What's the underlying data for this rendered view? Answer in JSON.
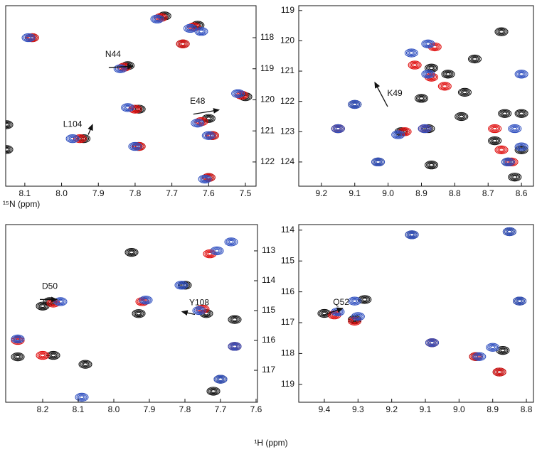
{
  "x_label": "¹H (ppm)",
  "y_label": "¹⁵N (ppm)",
  "chart_data": [
    {
      "type": "scatter",
      "xlim": [
        8.152,
        7.471
      ],
      "ylim": [
        116.97,
        122.78
      ],
      "xticks": [
        8.1,
        {
          "value": 8,
          "label": "8.0"
        },
        7.9,
        7.8,
        7.7,
        7.6,
        7.5
      ],
      "yticks": [
        118,
        119,
        120,
        121,
        122
      ],
      "ytick_side": "right",
      "series": [
        {
          "color": "#111111",
          "x": [
            8.08,
            7.72,
            7.63,
            7.67,
            7.82,
            7.79,
            7.5,
            7.6,
            7.59,
            7.94,
            7.79,
            7.6,
            8.15,
            8.15
          ],
          "y": [
            118.0,
            117.3,
            117.6,
            118.2,
            118.9,
            120.3,
            119.9,
            120.6,
            121.15,
            121.25,
            121.5,
            122.5,
            121.6,
            120.8
          ]
        },
        {
          "color": "#e01010",
          "x": [
            8.08,
            7.73,
            7.64,
            7.67,
            7.83,
            7.8,
            7.51,
            7.62,
            7.59,
            7.95,
            7.79,
            7.6
          ],
          "y": [
            118.0,
            117.35,
            117.65,
            118.2,
            118.95,
            120.3,
            119.85,
            120.7,
            121.15,
            121.25,
            121.5,
            122.5
          ]
        },
        {
          "color": "#3050c0",
          "x": [
            8.09,
            7.74,
            7.65,
            7.62,
            7.84,
            7.82,
            7.52,
            7.63,
            7.6,
            7.97,
            7.8,
            7.61
          ],
          "y": [
            118.0,
            117.4,
            117.7,
            117.8,
            119.0,
            120.25,
            119.8,
            120.75,
            121.15,
            121.25,
            121.5,
            122.55
          ]
        }
      ],
      "annotations": [
        {
          "text": "N44",
          "x": 7.86,
          "y": 118.55
        },
        {
          "text": "E48",
          "x": 7.63,
          "y": 120.05
        },
        {
          "text": "L104",
          "x": 7.97,
          "y": 120.8
        }
      ]
    },
    {
      "type": "scatter",
      "xlim": [
        9.268,
        8.564
      ],
      "ylim": [
        118.84,
        124.8
      ],
      "xticks": [
        9.2,
        9.1,
        {
          "value": 9,
          "label": "9.0"
        },
        8.9,
        8.8,
        8.7,
        8.6
      ],
      "yticks": [
        119,
        120,
        121,
        122,
        123,
        124
      ],
      "ytick_side": "left",
      "series": [
        {
          "color": "#111111",
          "x": [
            8.66,
            8.74,
            8.82,
            8.77,
            8.9,
            8.87,
            9.1,
            9.15,
            8.96,
            8.88,
            8.78,
            8.65,
            8.68,
            8.6,
            8.6,
            8.64,
            8.87,
            9.03,
            8.62
          ],
          "y": [
            119.7,
            120.6,
            121.1,
            121.7,
            121.9,
            120.9,
            122.1,
            122.9,
            123.0,
            122.9,
            122.5,
            122.4,
            123.3,
            122.4,
            123.6,
            124.0,
            124.1,
            124.0,
            124.5
          ]
        },
        {
          "color": "#e01010",
          "x": [
            8.86,
            8.92,
            8.87,
            8.83,
            8.68,
            8.66,
            8.95,
            8.89,
            9.15,
            8.63
          ],
          "y": [
            120.2,
            120.8,
            121.2,
            121.5,
            122.9,
            123.6,
            123.0,
            122.9,
            122.9,
            124.0
          ]
        },
        {
          "color": "#3050c0",
          "x": [
            8.93,
            8.88,
            8.88,
            9.1,
            9.15,
            8.97,
            8.89,
            8.62,
            8.6,
            8.64,
            8.6,
            9.03
          ],
          "y": [
            120.4,
            120.1,
            121.1,
            122.1,
            122.9,
            123.1,
            122.9,
            122.9,
            123.5,
            124.0,
            121.1,
            124.0
          ]
        }
      ],
      "annotations": [
        {
          "text": "K49",
          "x": 8.98,
          "y": 121.75
        }
      ]
    },
    {
      "type": "scatter",
      "xlim": [
        8.304,
        7.596
      ],
      "ylim": [
        112.12,
        118.07
      ],
      "xticks": [
        8.2,
        8.1,
        {
          "value": 8,
          "label": "8.0"
        },
        7.9,
        7.8,
        7.7,
        7.6
      ],
      "yticks": [
        113,
        114,
        115,
        116,
        117
      ],
      "ytick_side": "right",
      "series": [
        {
          "color": "#111111",
          "x": [
            7.95,
            8.2,
            8.27,
            8.08,
            8.17,
            7.93,
            7.8,
            7.74,
            7.66,
            7.66,
            7.7,
            7.72,
            8.18
          ],
          "y": [
            113.05,
            114.85,
            116.55,
            116.8,
            116.5,
            115.1,
            114.15,
            115.1,
            115.3,
            116.2,
            117.3,
            117.7,
            114.7
          ]
        },
        {
          "color": "#e01010",
          "x": [
            8.27,
            8.17,
            7.92,
            7.75,
            8.2,
            7.73,
            7.66
          ],
          "y": [
            116.0,
            114.75,
            114.7,
            114.95,
            116.5,
            113.1,
            116.2
          ]
        },
        {
          "color": "#3050c0",
          "x": [
            8.27,
            8.15,
            7.91,
            7.76,
            7.81,
            7.67,
            7.71,
            7.7,
            7.66,
            8.09
          ],
          "y": [
            115.95,
            114.7,
            114.65,
            115.0,
            114.15,
            112.7,
            113.0,
            117.3,
            116.2,
            117.9
          ]
        }
      ],
      "annotations": [
        {
          "text": "D50",
          "x": 8.18,
          "y": 114.2
        },
        {
          "text": "Y108",
          "x": 7.76,
          "y": 114.75
        }
      ]
    },
    {
      "type": "scatter",
      "xlim": [
        9.476,
        8.779
      ],
      "ylim": [
        113.82,
        119.58
      ],
      "xticks": [
        9.4,
        9.3,
        9.2,
        9.1,
        {
          "value": 9,
          "label": "9.0"
        },
        8.9,
        8.8
      ],
      "yticks": [
        114,
        115,
        116,
        117,
        118,
        119
      ],
      "ytick_side": "left",
      "series": [
        {
          "color": "#111111",
          "x": [
            9.4,
            9.28,
            9.31,
            9.14,
            9.08,
            8.95,
            8.87,
            8.85,
            8.82,
            8.88
          ],
          "y": [
            116.7,
            116.25,
            116.9,
            114.15,
            117.65,
            118.1,
            117.9,
            114.05,
            116.3,
            118.6
          ]
        },
        {
          "color": "#e01010",
          "x": [
            9.37,
            9.31,
            8.95,
            8.88,
            9.08
          ],
          "y": [
            116.75,
            116.95,
            118.1,
            118.6,
            117.65
          ]
        },
        {
          "color": "#3050c0",
          "x": [
            9.36,
            9.31,
            9.3,
            9.14,
            9.08,
            8.94,
            8.9,
            8.82,
            8.85
          ],
          "y": [
            116.65,
            116.3,
            116.8,
            114.15,
            117.65,
            118.1,
            117.8,
            116.3,
            114.05
          ]
        }
      ],
      "annotations": [
        {
          "text": "Q52",
          "x": 9.35,
          "y": 116.35
        }
      ]
    }
  ]
}
